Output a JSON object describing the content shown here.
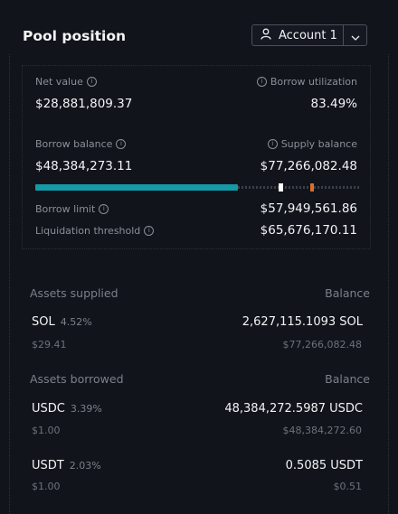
{
  "header": {
    "title": "Pool position",
    "account_label": "Account 1",
    "icons": {
      "account": "user-icon",
      "caret": "chevron-down-icon"
    }
  },
  "summary": {
    "net_value_label": "Net value",
    "net_value": "$28,881,809.37",
    "borrow_utilization_label": "Borrow utilization",
    "borrow_utilization": "83.49%",
    "borrow_balance_label": "Borrow balance",
    "borrow_balance": "$48,384,273.11",
    "supply_balance_label": "Supply balance",
    "supply_balance": "$77,266,082.48",
    "borrow_limit_label": "Borrow limit",
    "borrow_limit": "$57,949,561.86",
    "liquidation_threshold_label": "Liquidation threshold",
    "liquidation_threshold": "$65,676,170.11",
    "bar": {
      "borrow_fraction": 0.6262,
      "borrow_limit_fraction": 0.75,
      "liquidation_fraction": 0.85,
      "fill_color": "#1499a6",
      "limit_color": "#ffffff",
      "liquidation_color": "#d9702a"
    }
  },
  "supplied": {
    "header": "Assets supplied",
    "balance_header": "Balance",
    "items": [
      {
        "symbol": "SOL",
        "rate": "4.52%",
        "price": "$29.41",
        "balance": "2,627,115.1093 SOL",
        "usd": "$77,266,082.48"
      }
    ]
  },
  "borrowed": {
    "header": "Assets borrowed",
    "balance_header": "Balance",
    "items": [
      {
        "symbol": "USDC",
        "rate": "3.39%",
        "price": "$1.00",
        "balance": "48,384,272.5987 USDC",
        "usd": "$48,384,272.60"
      },
      {
        "symbol": "USDT",
        "rate": "2.03%",
        "price": "$1.00",
        "balance": "0.5085 USDT",
        "usd": "$0.51"
      }
    ]
  }
}
